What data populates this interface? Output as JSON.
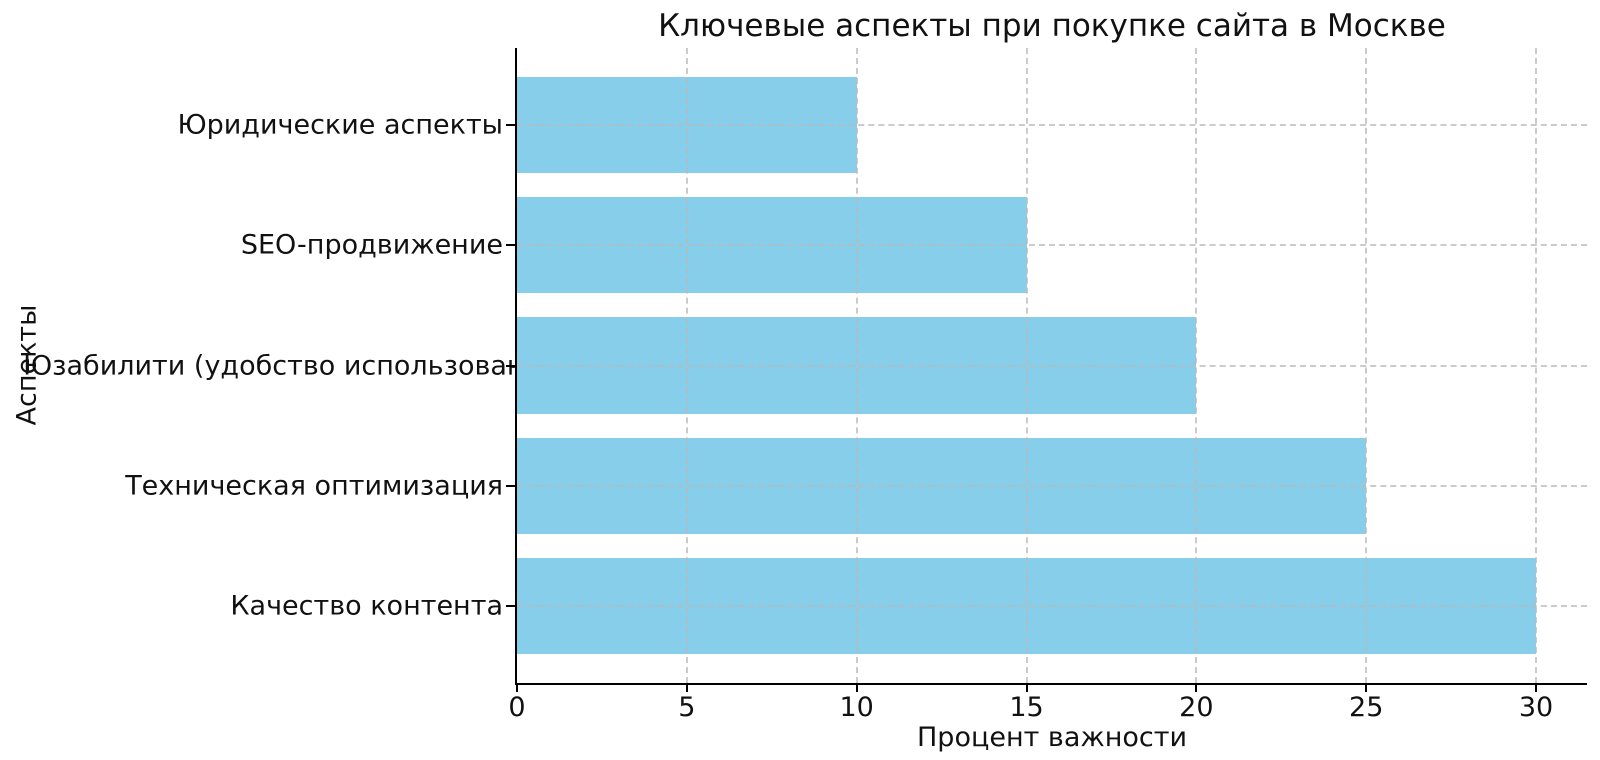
{
  "chart_data": {
    "type": "bar",
    "orientation": "horizontal",
    "title": "Ключевые аспекты при покупке сайта в Москве",
    "xlabel": "Процент важности",
    "ylabel": "Аспекты",
    "categories": [
      "Юридические аспекты",
      "SEO-продвижение",
      "Юзабилити (удобство использования)",
      "Техническая оптимизация",
      "Качество контента"
    ],
    "values": [
      10,
      15,
      20,
      25,
      30
    ],
    "xticks": [
      0,
      5,
      10,
      15,
      20,
      25,
      30
    ],
    "xlim": [
      0,
      31.5
    ],
    "bar_color": "#87CEEB",
    "grid": {
      "visible": true,
      "style": "dashed",
      "color": "#b9b9b9"
    },
    "axis_color": "#000000",
    "background": "#ffffff",
    "legend": null
  }
}
